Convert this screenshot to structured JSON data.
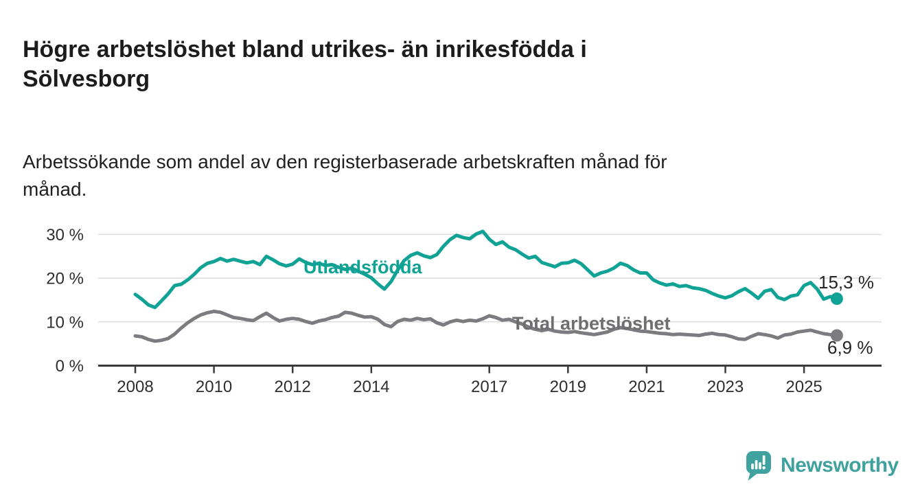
{
  "page": {
    "title": "Högre arbetslöshet bland utrikes- än inrikesfödda i Sölvesborg",
    "title_lines": [
      "Högre arbetslöshet bland utrikes- än inrikesfödda i",
      "Sölvesborg"
    ],
    "subtitle": "Arbetssökande som andel av den registerbaserade arbetskraften månad för månad.",
    "subtitle_lines": [
      "Arbetssökande som andel av den registerbaserade arbetskraften månad för",
      "månad."
    ]
  },
  "branding": {
    "logo_text": "Newsworthy",
    "logo_color": "#3fa29e",
    "logo_icon": "speech-bubble-bar-chart-icon"
  },
  "chart_data": {
    "type": "line",
    "title": "",
    "xlabel": "",
    "ylabel": "",
    "grid": true,
    "x_axis": {
      "unit": "year (monthly data)",
      "start_year": 2008.0,
      "step_years": 0.166667,
      "tick_years": [
        2008,
        2010,
        2012,
        2014,
        2017,
        2019,
        2021,
        2023,
        2025
      ],
      "tick_labels": [
        "2008",
        "2010",
        "2012",
        "2014",
        "2017",
        "2019",
        "2021",
        "2023",
        "2025"
      ]
    },
    "y_axis": {
      "unit": "%",
      "tick_values": [
        0,
        10,
        20,
        30
      ],
      "tick_labels": [
        "0 %",
        "10 %",
        "20 %",
        "30 %"
      ],
      "range": [
        0,
        32
      ]
    },
    "series": [
      {
        "name": "Utlandsfödda",
        "color": "#0fa295",
        "end_value": 15.3,
        "end_label": "15,3 %",
        "values": [
          16.3,
          15.2,
          13.9,
          13.3,
          14.8,
          16.4,
          18.3,
          18.6,
          19.6,
          20.9,
          22.4,
          23.4,
          23.8,
          24.5,
          23.9,
          24.3,
          23.9,
          23.5,
          23.8,
          23.1,
          25.0,
          24.2,
          23.3,
          22.8,
          23.2,
          24.4,
          23.6,
          23.1,
          23.4,
          22.9,
          23.1,
          22.5,
          22.0,
          22.3,
          21.6,
          20.9,
          20.1,
          18.7,
          17.5,
          19.2,
          21.8,
          24.0,
          25.2,
          25.8,
          25.1,
          24.7,
          25.4,
          27.3,
          28.8,
          29.8,
          29.3,
          29.0,
          30.1,
          30.7,
          28.9,
          27.7,
          28.3,
          27.1,
          26.5,
          25.5,
          24.6,
          25.0,
          23.6,
          23.1,
          22.6,
          23.4,
          23.5,
          24.1,
          23.3,
          21.9,
          20.5,
          21.2,
          21.6,
          22.3,
          23.4,
          22.9,
          21.9,
          21.2,
          21.2,
          19.6,
          18.9,
          18.4,
          18.7,
          18.1,
          18.3,
          17.8,
          17.6,
          17.2,
          16.5,
          15.9,
          15.5,
          16.0,
          16.9,
          17.6,
          16.6,
          15.4,
          17.0,
          17.4,
          15.6,
          15.1,
          15.9,
          16.2,
          18.3,
          19.0,
          17.5,
          15.2,
          15.8,
          15.3
        ]
      },
      {
        "name": "Total arbetslöshet",
        "color": "#7b7b80",
        "label_color": "#6d6d72",
        "end_value": 6.9,
        "end_label": "6,9 %",
        "values": [
          6.8,
          6.6,
          6.0,
          5.6,
          5.8,
          6.2,
          7.2,
          8.6,
          9.8,
          10.8,
          11.6,
          12.1,
          12.4,
          12.2,
          11.6,
          11.0,
          10.8,
          10.5,
          10.3,
          11.2,
          12.0,
          11.0,
          10.2,
          10.6,
          10.8,
          10.6,
          10.1,
          9.7,
          10.2,
          10.5,
          11.0,
          11.3,
          12.2,
          12.0,
          11.5,
          11.1,
          11.2,
          10.6,
          9.4,
          8.9,
          10.1,
          10.6,
          10.4,
          10.8,
          10.5,
          10.7,
          9.8,
          9.3,
          10.0,
          10.4,
          10.1,
          10.4,
          10.2,
          10.7,
          11.4,
          11.0,
          10.4,
          10.6,
          10.0,
          9.5,
          8.8,
          8.3,
          8.0,
          8.3,
          7.9,
          7.7,
          7.6,
          7.8,
          7.5,
          7.3,
          7.1,
          7.4,
          7.7,
          8.3,
          8.7,
          8.5,
          8.2,
          7.9,
          7.8,
          7.6,
          7.4,
          7.3,
          7.1,
          7.2,
          7.1,
          7.0,
          6.9,
          7.2,
          7.4,
          7.1,
          7.0,
          6.6,
          6.1,
          6.0,
          6.7,
          7.3,
          7.1,
          6.8,
          6.3,
          7.0,
          7.2,
          7.7,
          7.9,
          8.1,
          7.7,
          7.3,
          7.1,
          6.9
        ]
      }
    ],
    "legend_position": "inline-labels"
  }
}
